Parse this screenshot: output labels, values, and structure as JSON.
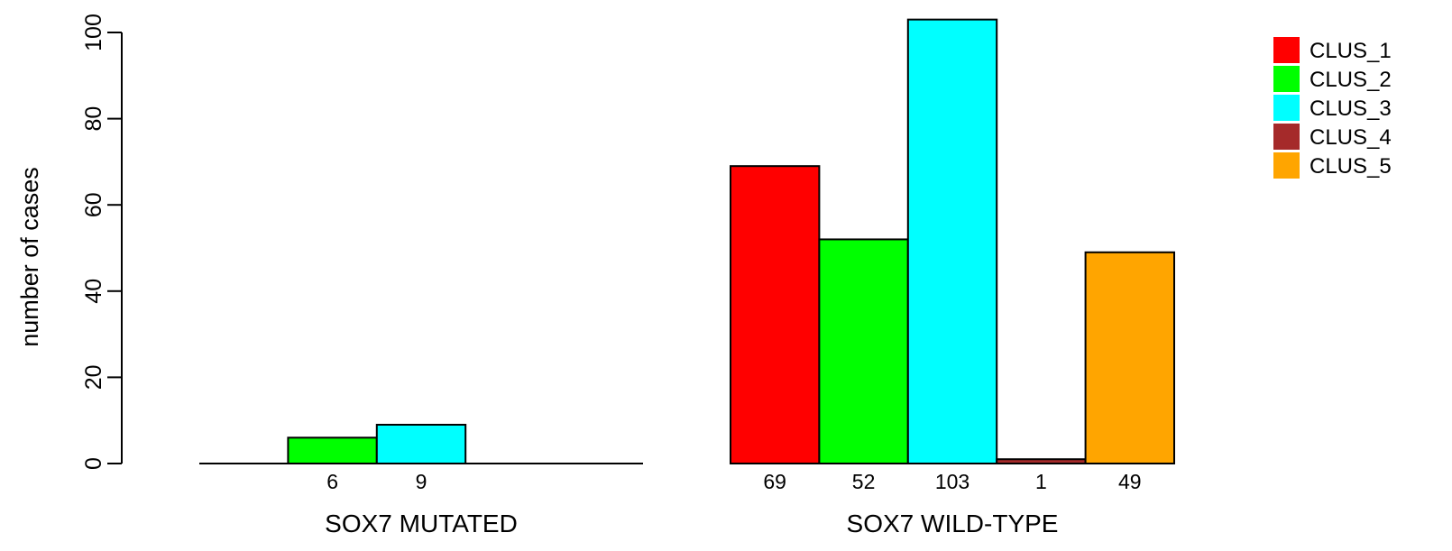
{
  "chart_data": {
    "type": "bar",
    "title": "",
    "xlabel": "",
    "ylabel": "number of cases",
    "ylim": [
      0,
      100
    ],
    "yticks": [
      0,
      20,
      40,
      60,
      80,
      100
    ],
    "grid": false,
    "legend_position": "top-right",
    "categories": [
      "SOX7 MUTATED",
      "SOX7 WILD-TYPE"
    ],
    "series": [
      {
        "name": "CLUS_1",
        "color": "#ff0000",
        "values": [
          0,
          69
        ],
        "labels": [
          "",
          "69"
        ]
      },
      {
        "name": "CLUS_2",
        "color": "#00ff00",
        "values": [
          6,
          52
        ],
        "labels": [
          "6",
          "52"
        ]
      },
      {
        "name": "CLUS_3",
        "color": "#00ffff",
        "values": [
          9,
          103
        ],
        "labels": [
          "9",
          "103"
        ]
      },
      {
        "name": "CLUS_4",
        "color": "#a52a2a",
        "values": [
          0,
          1
        ],
        "labels": [
          "",
          "1"
        ]
      },
      {
        "name": "CLUS_5",
        "color": "#ffa500",
        "values": [
          0,
          49
        ],
        "labels": [
          "",
          "49"
        ]
      }
    ]
  }
}
